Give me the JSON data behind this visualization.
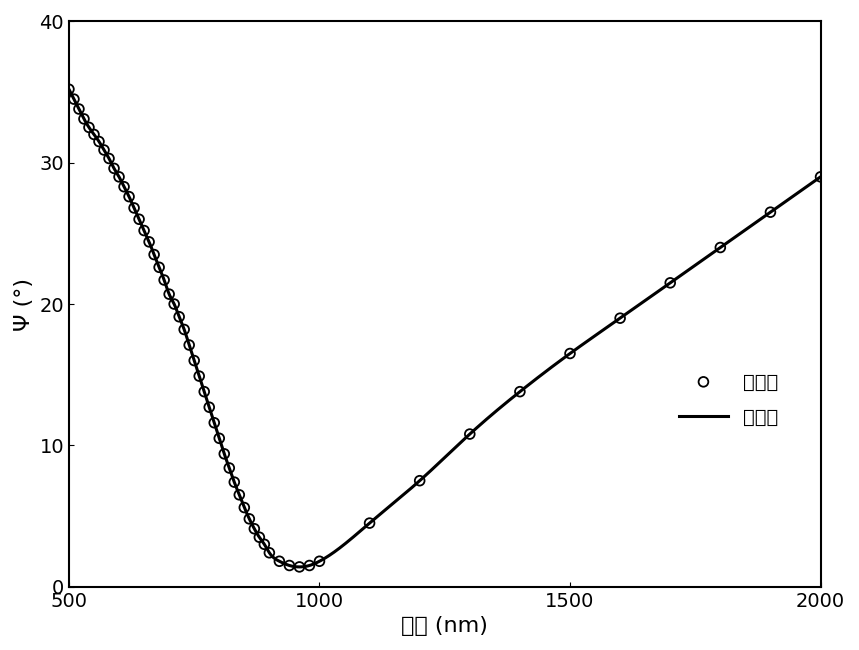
{
  "scatter_x": [
    500,
    510,
    520,
    530,
    540,
    550,
    560,
    570,
    580,
    590,
    600,
    610,
    620,
    630,
    640,
    650,
    660,
    670,
    680,
    690,
    700,
    710,
    720,
    730,
    740,
    750,
    760,
    770,
    780,
    790,
    800,
    810,
    820,
    830,
    840,
    850,
    860,
    870,
    880,
    890,
    900,
    920,
    940,
    960,
    980,
    1000,
    1100,
    1200,
    1300,
    1400,
    1500,
    1600,
    1700,
    1800,
    1900,
    2000
  ],
  "scatter_y": [
    35.2,
    34.5,
    33.8,
    33.1,
    32.5,
    32.0,
    31.5,
    30.9,
    30.3,
    29.6,
    29.0,
    28.3,
    27.6,
    26.8,
    26.0,
    25.2,
    24.4,
    23.5,
    22.6,
    21.7,
    20.7,
    20.0,
    19.1,
    18.2,
    17.1,
    16.0,
    14.9,
    13.8,
    12.7,
    11.6,
    10.5,
    9.4,
    8.4,
    7.4,
    6.5,
    5.6,
    4.8,
    4.1,
    3.5,
    3.0,
    2.4,
    1.8,
    1.5,
    1.4,
    1.5,
    1.8,
    4.5,
    7.5,
    10.8,
    13.8,
    16.5,
    19.0,
    21.5,
    24.0,
    26.5,
    29.0
  ],
  "line_x_start": 500,
  "line_x_end": 2000,
  "xlabel": "波长 (nm)",
  "ylabel": "Ψ (°)",
  "xlim": [
    500,
    2000
  ],
  "ylim": [
    0,
    40
  ],
  "xticks": [
    500,
    1000,
    1500,
    2000
  ],
  "yticks": [
    0,
    10,
    20,
    30,
    40
  ],
  "legend_scatter": "实验值",
  "legend_line": "拟合值",
  "scatter_color": "#000000",
  "line_color": "#000000",
  "background_color": "#ffffff",
  "label_fontsize": 16,
  "tick_fontsize": 14,
  "legend_fontsize": 14,
  "scatter_size": 7,
  "line_width": 2.2
}
